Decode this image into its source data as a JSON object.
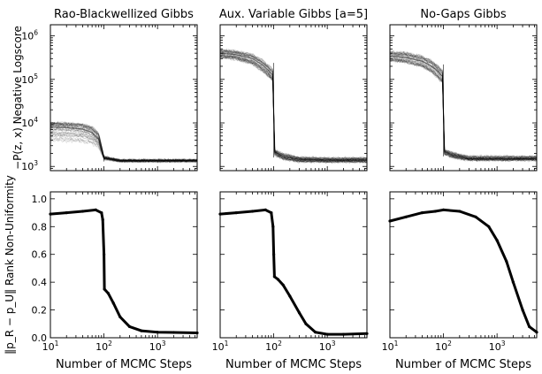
{
  "chart_data": [
    {
      "type": "line",
      "panel": "top-left",
      "title": "Rao-Blackwellized Gibbs",
      "ylabel": "−P(z, x) Negative Logscore",
      "xscale": "log",
      "yscale": "log",
      "xlim": [
        10,
        5500
      ],
      "ylim": [
        800,
        1800000
      ],
      "yticks": [
        {
          "base": "10",
          "exp": "3"
        },
        {
          "base": "10",
          "exp": "4"
        },
        {
          "base": "10",
          "exp": "5"
        },
        {
          "base": "10",
          "exp": "6"
        }
      ],
      "series_style": "many semi-transparent black traces",
      "band": [
        {
          "x": 10,
          "lo": 1800,
          "mid": 8000,
          "hi": 13000
        },
        {
          "x": 20,
          "lo": 1800,
          "mid": 7800,
          "hi": 13000
        },
        {
          "x": 40,
          "lo": 1800,
          "mid": 7200,
          "hi": 12500
        },
        {
          "x": 60,
          "lo": 1800,
          "mid": 6000,
          "hi": 11000
        },
        {
          "x": 80,
          "lo": 1700,
          "mid": 4200,
          "hi": 8000
        },
        {
          "x": 100,
          "lo": 1450,
          "mid": 1550,
          "hi": 1800
        },
        {
          "x": 200,
          "lo": 1300,
          "mid": 1350,
          "hi": 1420
        },
        {
          "x": 1000,
          "lo": 1300,
          "mid": 1350,
          "hi": 1420
        },
        {
          "x": 5500,
          "lo": 1300,
          "mid": 1350,
          "hi": 1420
        }
      ]
    },
    {
      "type": "line",
      "panel": "top-middle",
      "title": "Aux. Variable Gibbs [a=5]",
      "xscale": "log",
      "yscale": "log",
      "xlim": [
        10,
        5500
      ],
      "ylim": [
        800,
        1800000
      ],
      "series_style": "many semi-transparent black traces",
      "band": [
        {
          "x": 10,
          "lo": 250000,
          "mid": 400000,
          "hi": 600000
        },
        {
          "x": 20,
          "lo": 220000,
          "mid": 370000,
          "hi": 560000
        },
        {
          "x": 40,
          "lo": 160000,
          "mid": 300000,
          "hi": 480000
        },
        {
          "x": 60,
          "lo": 110000,
          "mid": 220000,
          "hi": 380000
        },
        {
          "x": 80,
          "lo": 80000,
          "mid": 160000,
          "hi": 280000
        },
        {
          "x": 99,
          "lo": 60000,
          "mid": 120000,
          "hi": 240000
        },
        {
          "x": 101,
          "lo": 1600,
          "mid": 2200,
          "hi": 2600
        },
        {
          "x": 150,
          "lo": 1250,
          "mid": 1700,
          "hi": 2300
        },
        {
          "x": 300,
          "lo": 1150,
          "mid": 1450,
          "hi": 1800
        },
        {
          "x": 1000,
          "lo": 1150,
          "mid": 1400,
          "hi": 1750
        },
        {
          "x": 5500,
          "lo": 1150,
          "mid": 1400,
          "hi": 1750
        }
      ]
    },
    {
      "type": "line",
      "panel": "top-right",
      "title": "No-Gaps Gibbs",
      "xscale": "log",
      "yscale": "log",
      "xlim": [
        10,
        5500
      ],
      "ylim": [
        800,
        1800000
      ],
      "series_style": "many semi-transparent black traces",
      "band": [
        {
          "x": 10,
          "lo": 200000,
          "mid": 340000,
          "hi": 550000
        },
        {
          "x": 20,
          "lo": 180000,
          "mid": 320000,
          "hi": 520000
        },
        {
          "x": 40,
          "lo": 140000,
          "mid": 260000,
          "hi": 450000
        },
        {
          "x": 60,
          "lo": 100000,
          "mid": 200000,
          "hi": 360000
        },
        {
          "x": 80,
          "lo": 70000,
          "mid": 150000,
          "hi": 270000
        },
        {
          "x": 99,
          "lo": 55000,
          "mid": 110000,
          "hi": 220000
        },
        {
          "x": 101,
          "lo": 1700,
          "mid": 2200,
          "hi": 2700
        },
        {
          "x": 150,
          "lo": 1400,
          "mid": 1800,
          "hi": 2300
        },
        {
          "x": 300,
          "lo": 1300,
          "mid": 1500,
          "hi": 1900
        },
        {
          "x": 1000,
          "lo": 1300,
          "mid": 1500,
          "hi": 1900
        },
        {
          "x": 5500,
          "lo": 1300,
          "mid": 1500,
          "hi": 1900
        }
      ]
    },
    {
      "type": "line",
      "panel": "bottom-left",
      "xlabel": "Number of MCMC Steps",
      "ylabel": "‖p_R − p_U‖ Rank Non-Uniformity",
      "xscale": "log",
      "yscale": "linear",
      "xlim": [
        10,
        5500
      ],
      "ylim": [
        0.0,
        1.05
      ],
      "yticks": [
        "0.0",
        "0.2",
        "0.4",
        "0.6",
        "0.8",
        "1.0"
      ],
      "x": [
        10,
        20,
        40,
        70,
        90,
        95,
        100,
        102,
        120,
        150,
        200,
        300,
        500,
        1000,
        2000,
        5500
      ],
      "y": [
        0.89,
        0.9,
        0.91,
        0.92,
        0.9,
        0.85,
        0.6,
        0.35,
        0.32,
        0.25,
        0.15,
        0.08,
        0.05,
        0.04,
        0.038,
        0.035
      ]
    },
    {
      "type": "line",
      "panel": "bottom-middle",
      "xlabel": "Number of MCMC Steps",
      "xscale": "log",
      "yscale": "linear",
      "xlim": [
        10,
        5500
      ],
      "ylim": [
        0.0,
        1.05
      ],
      "x": [
        10,
        20,
        40,
        70,
        90,
        97,
        100,
        103,
        120,
        150,
        200,
        300,
        400,
        600,
        1000,
        2000,
        5500
      ],
      "y": [
        0.89,
        0.9,
        0.91,
        0.92,
        0.9,
        0.8,
        0.6,
        0.44,
        0.42,
        0.38,
        0.3,
        0.18,
        0.1,
        0.04,
        0.025,
        0.025,
        0.03
      ]
    },
    {
      "type": "line",
      "panel": "bottom-right",
      "xlabel": "Number of MCMC Steps",
      "xscale": "log",
      "yscale": "linear",
      "xlim": [
        10,
        5500
      ],
      "ylim": [
        0.0,
        1.05
      ],
      "x": [
        10,
        20,
        40,
        70,
        100,
        200,
        400,
        700,
        1000,
        1500,
        2000,
        3000,
        4000,
        5500
      ],
      "y": [
        0.84,
        0.87,
        0.9,
        0.91,
        0.92,
        0.91,
        0.87,
        0.8,
        0.7,
        0.55,
        0.4,
        0.2,
        0.08,
        0.04
      ]
    }
  ]
}
